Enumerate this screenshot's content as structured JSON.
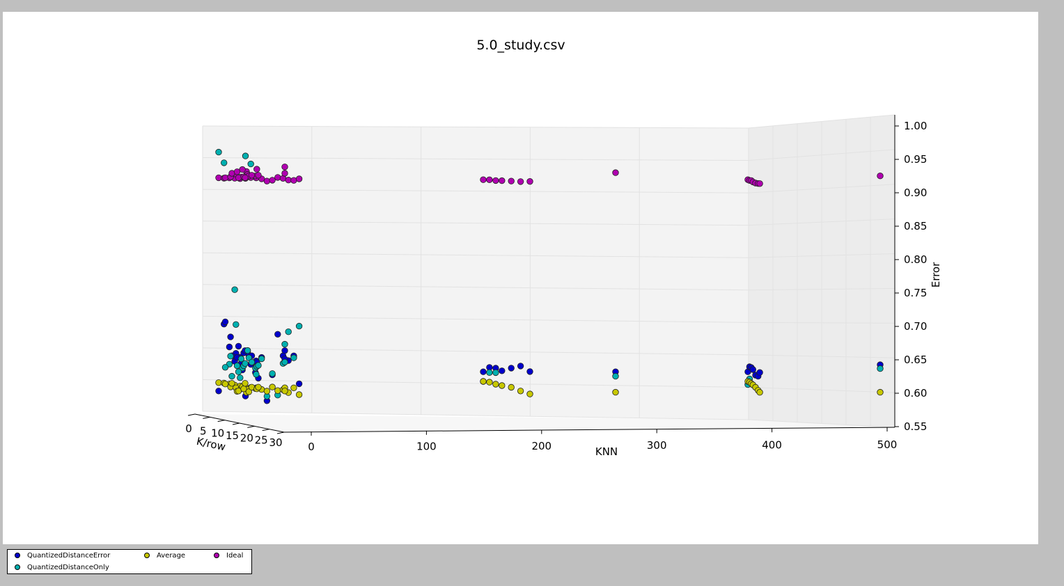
{
  "chart_data": {
    "type": "scatter",
    "projection": "3d",
    "title": "5.0_study.csv",
    "xlabel": "KNN",
    "ylabel": "K/row",
    "zlabel": "Error",
    "xlim": [
      0,
      500
    ],
    "ylim": [
      0,
      30
    ],
    "zlim": [
      0.55,
      1.0
    ],
    "xticks": [
      "0",
      "100",
      "200",
      "300",
      "400",
      "500"
    ],
    "yticks": [
      "0",
      "5",
      "10",
      "15",
      "20",
      "25",
      "30"
    ],
    "zticks": [
      "0.55",
      "0.60",
      "0.65",
      "0.70",
      "0.75",
      "0.80",
      "0.85",
      "0.90",
      "0.95",
      "1.00"
    ],
    "grid": true,
    "legend_position": "bottom-left, outside figure",
    "series": [
      {
        "name": "QuantizedDistanceError",
        "color": "#0000cc",
        "points": [
          [
            0,
            0,
            0.585
          ],
          [
            0,
            2,
            0.69
          ],
          [
            0,
            4,
            0.655
          ],
          [
            0,
            6,
            0.633
          ],
          [
            0,
            8,
            0.64
          ],
          [
            0,
            10,
            0.58
          ],
          [
            0,
            12,
            0.63
          ],
          [
            0,
            14,
            0.636
          ],
          [
            0,
            16,
            0.642
          ],
          [
            0,
            18,
            0.575
          ],
          [
            0,
            20,
            0.616
          ],
          [
            0,
            22,
            0.68
          ],
          [
            0,
            24,
            0.647
          ],
          [
            0,
            26,
            0.64
          ],
          [
            0,
            28,
            0.648
          ],
          [
            0,
            30,
            0.605
          ],
          [
            5,
            0,
            0.693
          ],
          [
            5,
            2,
            0.67
          ],
          [
            5,
            4,
            0.645
          ],
          [
            5,
            6,
            0.63
          ],
          [
            5,
            8,
            0.648
          ],
          [
            10,
            0,
            0.64
          ],
          [
            10,
            2,
            0.638
          ],
          [
            10,
            4,
            0.619
          ],
          [
            10,
            6,
            0.648
          ],
          [
            15,
            0,
            0.655
          ],
          [
            15,
            2,
            0.645
          ],
          [
            15,
            4,
            0.642
          ],
          [
            20,
            0,
            0.648
          ],
          [
            20,
            4,
            0.615
          ],
          [
            25,
            0,
            0.64
          ],
          [
            25,
            2,
            0.63
          ],
          [
            30,
            0,
            0.605
          ],
          [
            50,
            0,
            0.635
          ],
          [
            50,
            0,
            0.648
          ],
          [
            200,
            0,
            0.615
          ],
          [
            200,
            4,
            0.623
          ],
          [
            200,
            8,
            0.623
          ],
          [
            200,
            12,
            0.62
          ],
          [
            200,
            18,
            0.626
          ],
          [
            200,
            24,
            0.631
          ],
          [
            200,
            30,
            0.624
          ],
          [
            300,
            0,
            0.615
          ],
          [
            400,
            0,
            0.615
          ],
          [
            400,
            4,
            0.624
          ],
          [
            400,
            8,
            0.624
          ],
          [
            400,
            12,
            0.622
          ],
          [
            400,
            18,
            0.615
          ],
          [
            400,
            24,
            0.615
          ],
          [
            400,
            28,
            0.622
          ],
          [
            500,
            0,
            0.626
          ]
        ]
      },
      {
        "name": "QuantizedDistanceOnly",
        "color": "#00b0b0",
        "points": [
          [
            0,
            0,
            0.958
          ],
          [
            0,
            2,
            0.942
          ],
          [
            0,
            4,
            0.628
          ],
          [
            0,
            6,
            0.745
          ],
          [
            0,
            8,
            0.608
          ],
          [
            0,
            10,
            0.955
          ],
          [
            0,
            12,
            0.943
          ],
          [
            0,
            14,
            0.615
          ],
          [
            0,
            16,
            0.64
          ],
          [
            0,
            18,
            0.582
          ],
          [
            0,
            20,
            0.618
          ],
          [
            0,
            22,
            0.585
          ],
          [
            0,
            24,
            0.635
          ],
          [
            0,
            26,
            0.685
          ],
          [
            0,
            28,
            0.645
          ],
          [
            0,
            30,
            0.695
          ],
          [
            5,
            0,
            0.622
          ],
          [
            5,
            2,
            0.64
          ],
          [
            5,
            4,
            0.69
          ],
          [
            5,
            6,
            0.637
          ],
          [
            10,
            0,
            0.608
          ],
          [
            10,
            2,
            0.625
          ],
          [
            10,
            4,
            0.622
          ],
          [
            10,
            6,
            0.65
          ],
          [
            15,
            0,
            0.615
          ],
          [
            15,
            2,
            0.625
          ],
          [
            15,
            4,
            0.638
          ],
          [
            20,
            0,
            0.628
          ],
          [
            20,
            4,
            0.622
          ],
          [
            25,
            0,
            0.63
          ],
          [
            25,
            2,
            0.624
          ],
          [
            30,
            0,
            0.625
          ],
          [
            50,
            0,
            0.63
          ],
          [
            50,
            0,
            0.658
          ],
          [
            200,
            0,
            0.6
          ],
          [
            200,
            4,
            0.615
          ],
          [
            200,
            8,
            0.616
          ],
          [
            300,
            0,
            0.608
          ],
          [
            400,
            0,
            0.595
          ],
          [
            400,
            4,
            0.605
          ],
          [
            500,
            0,
            0.62
          ]
        ]
      },
      {
        "name": "Average",
        "color": "#c8c800",
        "points": [
          [
            0,
            0,
            0.598
          ],
          [
            0,
            2,
            0.598
          ],
          [
            0,
            4,
            0.597
          ],
          [
            0,
            6,
            0.596
          ],
          [
            0,
            8,
            0.595
          ],
          [
            0,
            10,
            0.594
          ],
          [
            0,
            12,
            0.594
          ],
          [
            0,
            14,
            0.594
          ],
          [
            0,
            16,
            0.592
          ],
          [
            0,
            18,
            0.59
          ],
          [
            0,
            20,
            0.597
          ],
          [
            0,
            22,
            0.592
          ],
          [
            0,
            24,
            0.594
          ],
          [
            0,
            26,
            0.59
          ],
          [
            0,
            28,
            0.598
          ],
          [
            0,
            30,
            0.588
          ],
          [
            5,
            0,
            0.596
          ],
          [
            5,
            2,
            0.592
          ],
          [
            5,
            4,
            0.591
          ],
          [
            5,
            6,
            0.59
          ],
          [
            5,
            8,
            0.585
          ],
          [
            10,
            0,
            0.597
          ],
          [
            10,
            2,
            0.585
          ],
          [
            10,
            4,
            0.593
          ],
          [
            10,
            6,
            0.589
          ],
          [
            15,
            0,
            0.585
          ],
          [
            15,
            2,
            0.589
          ],
          [
            15,
            4,
            0.585
          ],
          [
            20,
            0,
            0.597
          ],
          [
            20,
            4,
            0.59
          ],
          [
            25,
            0,
            0.591
          ],
          [
            25,
            2,
            0.589
          ],
          [
            30,
            0,
            0.591
          ],
          [
            50,
            0,
            0.59
          ],
          [
            50,
            0,
            0.585
          ],
          [
            200,
            0,
            0.6
          ],
          [
            200,
            4,
            0.6
          ],
          [
            200,
            8,
            0.598
          ],
          [
            200,
            12,
            0.597
          ],
          [
            200,
            18,
            0.596
          ],
          [
            200,
            24,
            0.592
          ],
          [
            200,
            30,
            0.589
          ],
          [
            300,
            0,
            0.583
          ],
          [
            400,
            0,
            0.6
          ],
          [
            400,
            4,
            0.6
          ],
          [
            400,
            8,
            0.599
          ],
          [
            400,
            12,
            0.598
          ],
          [
            400,
            18,
            0.596
          ],
          [
            400,
            24,
            0.593
          ],
          [
            400,
            28,
            0.591
          ],
          [
            500,
            0,
            0.583
          ]
        ]
      },
      {
        "name": "Ideal",
        "color": "#b000b0",
        "points": [
          [
            0,
            0,
            0.918
          ],
          [
            0,
            2,
            0.918
          ],
          [
            0,
            4,
            0.919
          ],
          [
            0,
            6,
            0.919
          ],
          [
            0,
            8,
            0.919
          ],
          [
            0,
            10,
            0.92
          ],
          [
            0,
            12,
            0.922
          ],
          [
            0,
            14,
            0.922
          ],
          [
            0,
            16,
            0.921
          ],
          [
            0,
            18,
            0.918
          ],
          [
            0,
            20,
            0.92
          ],
          [
            0,
            22,
            0.925
          ],
          [
            0,
            24,
            0.924
          ],
          [
            0,
            26,
            0.922
          ],
          [
            0,
            28,
            0.922
          ],
          [
            0,
            30,
            0.925
          ],
          [
            5,
            0,
            0.918
          ],
          [
            5,
            2,
            0.92
          ],
          [
            5,
            4,
            0.925
          ],
          [
            5,
            6,
            0.921
          ],
          [
            5,
            8,
            0.93
          ],
          [
            10,
            0,
            0.925
          ],
          [
            10,
            2,
            0.928
          ],
          [
            10,
            4,
            0.932
          ],
          [
            10,
            6,
            0.925
          ],
          [
            15,
            0,
            0.918
          ],
          [
            15,
            2,
            0.92
          ],
          [
            15,
            4,
            0.922
          ],
          [
            20,
            0,
            0.918
          ],
          [
            20,
            4,
            0.922
          ],
          [
            25,
            0,
            0.922
          ],
          [
            25,
            2,
            0.932
          ],
          [
            30,
            0,
            0.922
          ],
          [
            50,
            0,
            0.925
          ],
          [
            50,
            0,
            0.935
          ],
          [
            200,
            0,
            0.915
          ],
          [
            200,
            4,
            0.916
          ],
          [
            200,
            8,
            0.916
          ],
          [
            200,
            12,
            0.917
          ],
          [
            200,
            18,
            0.918
          ],
          [
            200,
            24,
            0.919
          ],
          [
            200,
            30,
            0.921
          ],
          [
            300,
            0,
            0.926
          ],
          [
            400,
            0,
            0.915
          ],
          [
            400,
            4,
            0.915
          ],
          [
            400,
            8,
            0.916
          ],
          [
            400,
            12,
            0.915
          ],
          [
            400,
            18,
            0.915
          ],
          [
            400,
            24,
            0.916
          ],
          [
            400,
            28,
            0.917
          ],
          [
            500,
            0,
            0.921
          ]
        ]
      }
    ]
  }
}
